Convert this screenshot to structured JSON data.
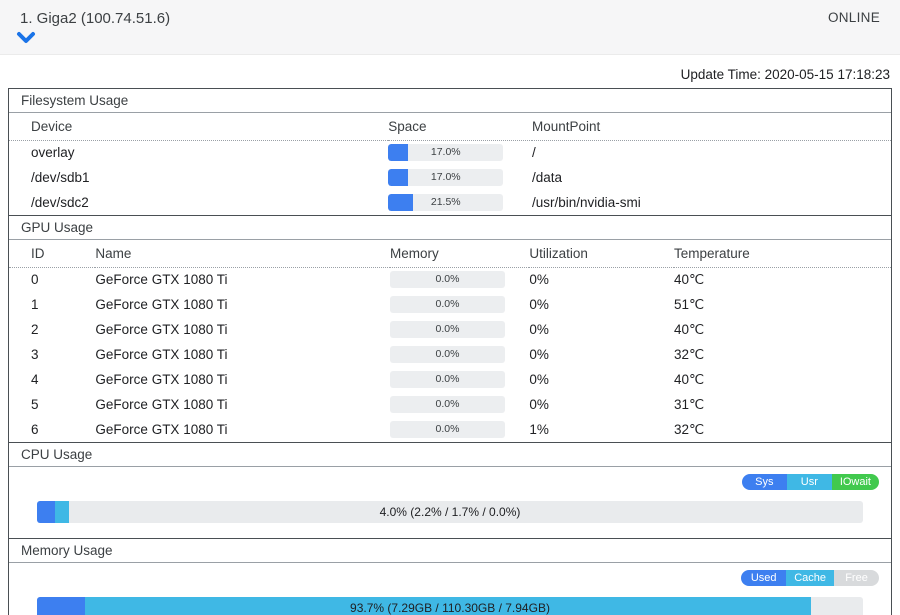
{
  "header": {
    "title": "1. Giga2 (100.74.51.6)",
    "status": "ONLINE"
  },
  "update_time": "Update Time: 2020-05-15 17:18:23",
  "colors": {
    "accent_blue": "#3d7ff0",
    "cyan": "#3fb8e5",
    "green": "#41c94e",
    "track_gray": "#e9ebed",
    "free_gray": "#d8dadc",
    "chevron_blue": "#1a73e8"
  },
  "filesystem": {
    "title": "Filesystem Usage",
    "columns": [
      "Device",
      "Space",
      "MountPoint"
    ],
    "rows": [
      {
        "device": "overlay",
        "space_pct": 17.0,
        "space_label": "17.0%",
        "mount": "/"
      },
      {
        "device": "/dev/sdb1",
        "space_pct": 17.0,
        "space_label": "17.0%",
        "mount": "/data"
      },
      {
        "device": "/dev/sdc2",
        "space_pct": 21.5,
        "space_label": "21.5%",
        "mount": "/usr/bin/nvidia-smi"
      }
    ]
  },
  "gpu": {
    "title": "GPU Usage",
    "columns": [
      "ID",
      "Name",
      "Memory",
      "Utilization",
      "Temperature"
    ],
    "rows": [
      {
        "id": "0",
        "name": "GeForce GTX 1080 Ti",
        "memory_pct": 0.0,
        "memory_label": "0.0%",
        "utilization": "0%",
        "temperature": "40℃"
      },
      {
        "id": "1",
        "name": "GeForce GTX 1080 Ti",
        "memory_pct": 0.0,
        "memory_label": "0.0%",
        "utilization": "0%",
        "temperature": "51℃"
      },
      {
        "id": "2",
        "name": "GeForce GTX 1080 Ti",
        "memory_pct": 0.0,
        "memory_label": "0.0%",
        "utilization": "0%",
        "temperature": "40℃"
      },
      {
        "id": "3",
        "name": "GeForce GTX 1080 Ti",
        "memory_pct": 0.0,
        "memory_label": "0.0%",
        "utilization": "0%",
        "temperature": "32℃"
      },
      {
        "id": "4",
        "name": "GeForce GTX 1080 Ti",
        "memory_pct": 0.0,
        "memory_label": "0.0%",
        "utilization": "0%",
        "temperature": "40℃"
      },
      {
        "id": "5",
        "name": "GeForce GTX 1080 Ti",
        "memory_pct": 0.0,
        "memory_label": "0.0%",
        "utilization": "0%",
        "temperature": "31℃"
      },
      {
        "id": "6",
        "name": "GeForce GTX 1080 Ti",
        "memory_pct": 0.0,
        "memory_label": "0.0%",
        "utilization": "1%",
        "temperature": "32℃"
      }
    ]
  },
  "cpu": {
    "title": "CPU Usage",
    "legend": [
      {
        "label": "Sys",
        "color": "#3d7ff0"
      },
      {
        "label": "Usr",
        "color": "#3fb8e5"
      },
      {
        "label": "IOwait",
        "color": "#41c94e"
      }
    ],
    "bar": {
      "label": "4.0% (2.2% / 1.7% / 0.0%)",
      "total_pct": 4.0,
      "segments": [
        {
          "name": "sys",
          "pct": 2.2,
          "color": "#3d7ff0"
        },
        {
          "name": "usr",
          "pct": 1.7,
          "color": "#3fb8e5"
        },
        {
          "name": "iowait",
          "pct": 0.0,
          "color": "#41c94e"
        }
      ]
    }
  },
  "memory": {
    "title": "Memory Usage",
    "legend": [
      {
        "label": "Used",
        "color": "#3d7ff0"
      },
      {
        "label": "Cache",
        "color": "#3fb8e5"
      },
      {
        "label": "Free",
        "color": "#d8dadc"
      }
    ],
    "bar": {
      "label": "93.7% (7.29GB / 110.30GB / 7.94GB)",
      "total_pct": 93.7,
      "segments": [
        {
          "name": "used",
          "pct": 5.8,
          "color": "#3d7ff0"
        },
        {
          "name": "cache",
          "pct": 87.9,
          "color": "#3fb8e5"
        }
      ]
    }
  }
}
